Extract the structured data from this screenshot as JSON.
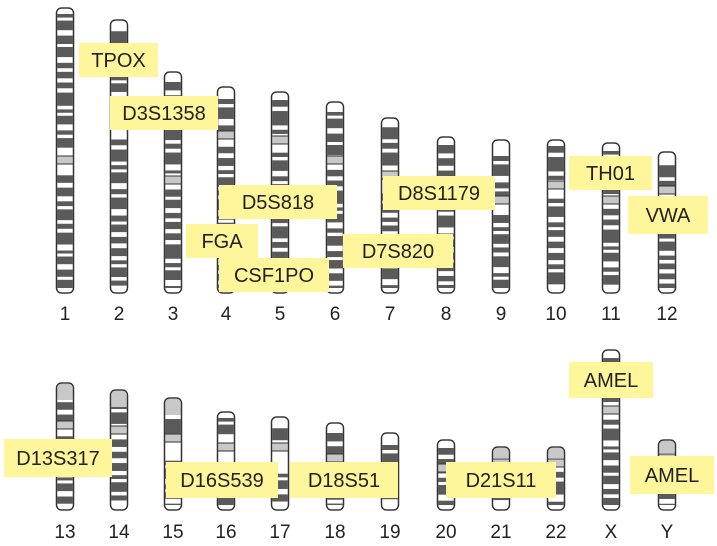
{
  "title": "",
  "chromosome_labels": [
    "1",
    "2",
    "3",
    "4",
    "5",
    "6",
    "7",
    "8",
    "9",
    "10",
    "11",
    "12",
    "13",
    "14",
    "15",
    "16",
    "17",
    "18",
    "19",
    "20",
    "21",
    "22",
    "X",
    "Y"
  ],
  "markers": [
    {
      "text": "TPOX",
      "chromosome": "2"
    },
    {
      "text": "D3S1358",
      "chromosome": "3"
    },
    {
      "text": "D5S818",
      "chromosome": "5"
    },
    {
      "text": "FGA",
      "chromosome": "4"
    },
    {
      "text": "CSF1PO",
      "chromosome": "5"
    },
    {
      "text": "D7S820",
      "chromosome": "7"
    },
    {
      "text": "D8S1179",
      "chromosome": "8"
    },
    {
      "text": "TH01",
      "chromosome": "11"
    },
    {
      "text": "VWA",
      "chromosome": "12"
    },
    {
      "text": "D13S317",
      "chromosome": "13"
    },
    {
      "text": "D16S539",
      "chromosome": "16"
    },
    {
      "text": "D18S51",
      "chromosome": "18"
    },
    {
      "text": "D21S11",
      "chromosome": "21"
    },
    {
      "text": "AMEL",
      "chromosome": "X"
    },
    {
      "text": "AMEL",
      "chromosome": "Y"
    }
  ],
  "colors": {
    "label_fill": "#fff59a",
    "band_dark": "#5a5a5a",
    "band_light": "#ffffff",
    "centromere": "#c8c8c8",
    "outline": "#333333",
    "text": "#222222"
  }
}
